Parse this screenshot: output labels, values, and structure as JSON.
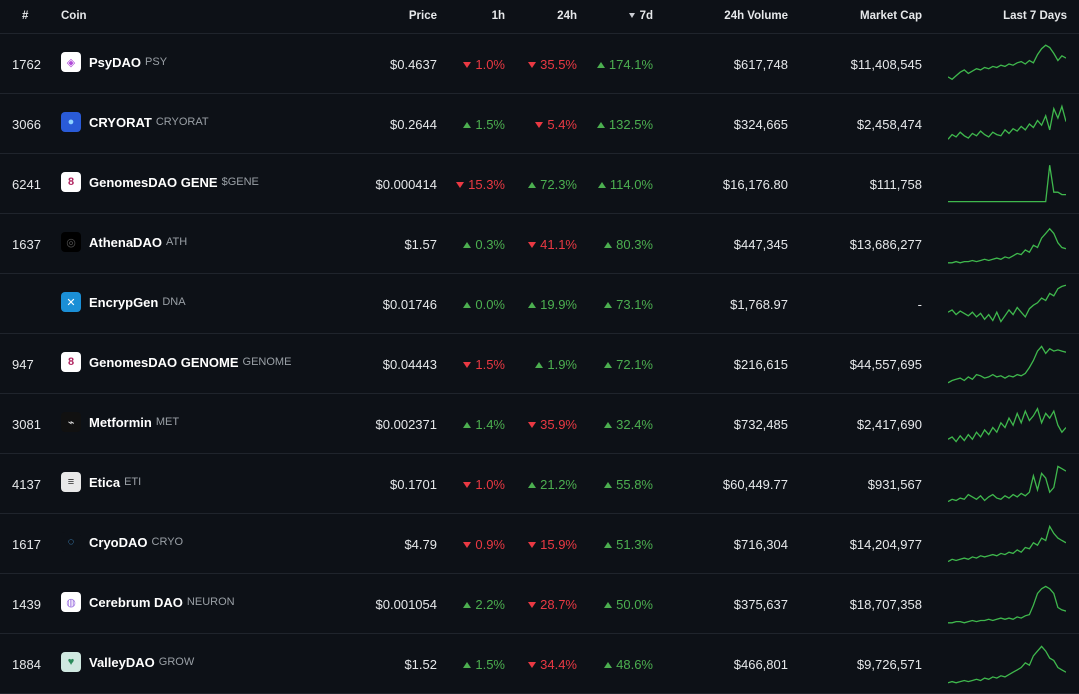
{
  "header": {
    "rank": "#",
    "coin": "Coin",
    "price": "Price",
    "h1": "1h",
    "h24": "24h",
    "d7": "7d",
    "volume": "24h Volume",
    "mcap": "Market Cap",
    "spark": "Last 7 Days"
  },
  "colors": {
    "up": "#4caf50",
    "down": "#ea3943",
    "spark": "#3fb84d"
  },
  "rows": [
    {
      "rank": "1762",
      "name": "PsyDAO",
      "symbol": "PSY",
      "logo": "psydao-logo",
      "logo_color": "#ffffff",
      "logo_glyph": "◈",
      "logo_fg": "#b04ad8",
      "price": "$0.4637",
      "h1": "1.0%",
      "h1_dir": "down",
      "h24": "35.5%",
      "h24_dir": "down",
      "d7": "174.1%",
      "d7_dir": "up",
      "volume": "$617,748",
      "mcap": "$11,408,545",
      "spark": [
        28,
        30,
        27,
        24,
        22,
        25,
        23,
        21,
        22,
        20,
        21,
        19,
        20,
        18,
        19,
        17,
        18,
        16,
        15,
        17,
        14,
        16,
        9,
        4,
        1,
        3,
        8,
        14,
        10,
        12
      ]
    },
    {
      "rank": "3066",
      "name": "CRYORAT",
      "symbol": "CRYORAT",
      "logo": "cryorat-logo",
      "logo_color": "#2a5bd7",
      "logo_glyph": "●",
      "logo_fg": "#8fd3ff",
      "price": "$0.2644",
      "h1": "1.5%",
      "h1_dir": "up",
      "h24": "5.4%",
      "h24_dir": "down",
      "d7": "132.5%",
      "d7_dir": "up",
      "volume": "$324,665",
      "mcap": "$2,458,474",
      "spark": [
        30,
        26,
        28,
        24,
        27,
        29,
        25,
        27,
        23,
        26,
        28,
        24,
        26,
        27,
        22,
        25,
        21,
        23,
        19,
        22,
        17,
        20,
        14,
        18,
        10,
        22,
        4,
        12,
        2,
        15
      ]
    },
    {
      "rank": "6241",
      "name": "GenomesDAO GENE",
      "symbol": "$GENE",
      "logo": "genomesdao-logo",
      "logo_color": "#ffffff",
      "logo_glyph": "8",
      "logo_fg": "#b0245f",
      "price": "$0.000414",
      "h1": "15.3%",
      "h1_dir": "down",
      "h24": "72.3%",
      "h24_dir": "up",
      "d7": "114.0%",
      "d7_dir": "up",
      "volume": "$16,176.80",
      "mcap": "$111,758",
      "spark": [
        32,
        32,
        32,
        32,
        32,
        32,
        32,
        32,
        32,
        32,
        32,
        32,
        32,
        32,
        32,
        32,
        32,
        32,
        32,
        32,
        32,
        32,
        32,
        32,
        32,
        1,
        24,
        24,
        26,
        26
      ]
    },
    {
      "rank": "1637",
      "name": "AthenaDAO",
      "symbol": "ATH",
      "logo": "athenadao-logo",
      "logo_color": "#000000",
      "logo_glyph": "◎",
      "logo_fg": "#555555",
      "price": "$1.57",
      "h1": "0.3%",
      "h1_dir": "up",
      "h24": "41.1%",
      "h24_dir": "down",
      "d7": "80.3%",
      "d7_dir": "up",
      "volume": "$447,345",
      "mcap": "$13,686,277",
      "spark": [
        33,
        33,
        32,
        33,
        32,
        32,
        31,
        32,
        31,
        30,
        31,
        30,
        29,
        30,
        28,
        29,
        27,
        25,
        26,
        22,
        24,
        18,
        20,
        12,
        8,
        4,
        8,
        16,
        20,
        21
      ]
    },
    {
      "rank": "",
      "name": "EncrypGen",
      "symbol": "DNA",
      "logo": "encrypgen-logo",
      "logo_color": "#1b8fd6",
      "logo_glyph": "✕",
      "logo_fg": "#ffffff",
      "price": "$0.01746",
      "h1": "0.0%",
      "h1_dir": "up",
      "h24": "19.9%",
      "h24_dir": "up",
      "d7": "73.1%",
      "d7_dir": "up",
      "volume": "$1,768.97",
      "mcap": "-",
      "spark": [
        24,
        22,
        26,
        23,
        25,
        27,
        24,
        28,
        25,
        30,
        26,
        31,
        24,
        32,
        27,
        22,
        26,
        20,
        24,
        28,
        21,
        18,
        16,
        12,
        14,
        8,
        10,
        4,
        2,
        1
      ]
    },
    {
      "rank": "947",
      "name": "GenomesDAO GENOME",
      "symbol": "GENOME",
      "logo": "genomesdao-genome-logo",
      "logo_color": "#ffffff",
      "logo_glyph": "8",
      "logo_fg": "#b0245f",
      "price": "$0.04443",
      "h1": "1.5%",
      "h1_dir": "down",
      "h24": "1.9%",
      "h24_dir": "up",
      "d7": "72.1%",
      "d7_dir": "up",
      "volume": "$216,615",
      "mcap": "$44,557,695",
      "spark": [
        33,
        31,
        30,
        29,
        31,
        28,
        30,
        26,
        27,
        29,
        28,
        26,
        28,
        27,
        29,
        27,
        28,
        26,
        27,
        25,
        20,
        14,
        6,
        2,
        8,
        4,
        6,
        5,
        6,
        7
      ]
    },
    {
      "rank": "3081",
      "name": "Metformin",
      "symbol": "MET",
      "logo": "metformin-logo",
      "logo_color": "#111111",
      "logo_glyph": "⌁",
      "logo_fg": "#dddddd",
      "price": "$0.002371",
      "h1": "1.4%",
      "h1_dir": "up",
      "h24": "35.9%",
      "h24_dir": "down",
      "d7": "32.4%",
      "d7_dir": "up",
      "volume": "$732,485",
      "mcap": "$2,417,690",
      "spark": [
        30,
        28,
        32,
        27,
        31,
        26,
        30,
        24,
        28,
        22,
        26,
        20,
        24,
        16,
        20,
        12,
        18,
        8,
        16,
        6,
        14,
        10,
        4,
        16,
        8,
        12,
        6,
        18,
        24,
        20
      ]
    },
    {
      "rank": "4137",
      "name": "Etica",
      "symbol": "ETI",
      "logo": "etica-logo",
      "logo_color": "#e8e8e8",
      "logo_glyph": "≡",
      "logo_fg": "#2a2a2a",
      "price": "$0.1701",
      "h1": "1.0%",
      "h1_dir": "down",
      "h24": "21.2%",
      "h24_dir": "up",
      "d7": "55.8%",
      "d7_dir": "up",
      "volume": "$60,449.77",
      "mcap": "$931,567",
      "spark": [
        32,
        30,
        31,
        29,
        30,
        26,
        28,
        30,
        27,
        31,
        28,
        26,
        29,
        30,
        27,
        29,
        26,
        28,
        25,
        27,
        24,
        10,
        22,
        8,
        12,
        24,
        20,
        2,
        4,
        6
      ]
    },
    {
      "rank": "1617",
      "name": "CryoDAO",
      "symbol": "CRYO",
      "logo": "cryodao-logo",
      "logo_color": "#0d1117",
      "logo_glyph": "◌",
      "logo_fg": "#4fb3ff",
      "price": "$4.79",
      "h1": "0.9%",
      "h1_dir": "down",
      "h24": "15.9%",
      "h24_dir": "down",
      "d7": "51.3%",
      "d7_dir": "up",
      "volume": "$716,304",
      "mcap": "$14,204,977",
      "spark": [
        32,
        30,
        31,
        30,
        29,
        30,
        28,
        29,
        27,
        28,
        27,
        26,
        27,
        25,
        26,
        24,
        25,
        22,
        24,
        20,
        21,
        16,
        18,
        12,
        14,
        2,
        8,
        12,
        14,
        16
      ]
    },
    {
      "rank": "1439",
      "name": "Cerebrum DAO",
      "symbol": "NEURON",
      "logo": "cerebrum-logo",
      "logo_color": "#ffffff",
      "logo_glyph": "◍",
      "logo_fg": "#9a6ee0",
      "price": "$0.001054",
      "h1": "2.2%",
      "h1_dir": "up",
      "h24": "28.7%",
      "h24_dir": "down",
      "d7": "50.0%",
      "d7_dir": "up",
      "volume": "$375,637",
      "mcap": "$18,707,358",
      "spark": [
        33,
        33,
        32,
        32,
        33,
        32,
        31,
        32,
        31,
        31,
        30,
        31,
        30,
        29,
        30,
        29,
        30,
        28,
        29,
        27,
        26,
        18,
        8,
        4,
        2,
        4,
        8,
        20,
        22,
        23
      ]
    },
    {
      "rank": "1884",
      "name": "ValleyDAO",
      "symbol": "GROW",
      "logo": "valleydao-logo",
      "logo_color": "#cfe8e0",
      "logo_glyph": "♥",
      "logo_fg": "#2a8a5a",
      "price": "$1.52",
      "h1": "1.5%",
      "h1_dir": "up",
      "h24": "34.4%",
      "h24_dir": "down",
      "d7": "48.6%",
      "d7_dir": "up",
      "volume": "$466,801",
      "mcap": "$9,726,571",
      "spark": [
        33,
        32,
        33,
        32,
        31,
        32,
        31,
        30,
        31,
        29,
        30,
        28,
        29,
        27,
        28,
        26,
        24,
        22,
        20,
        16,
        18,
        10,
        6,
        2,
        6,
        12,
        14,
        20,
        22,
        24
      ]
    }
  ]
}
